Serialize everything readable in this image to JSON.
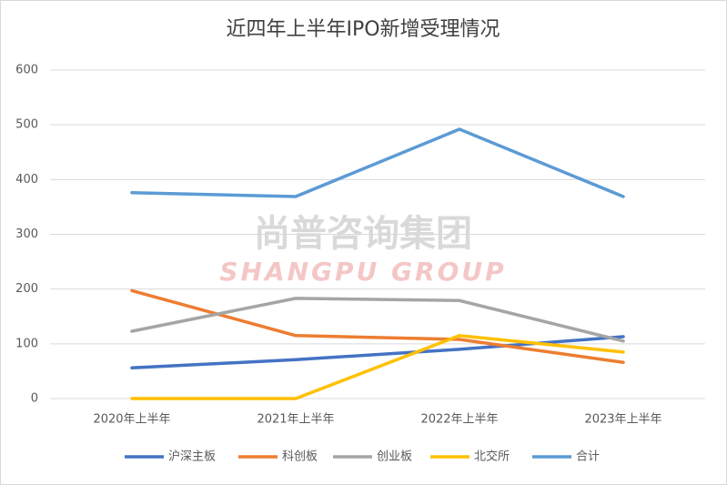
{
  "chart_data": {
    "type": "line",
    "title": "近四年上半年IPO新增受理情况",
    "watermark": [
      "尚普咨询集团",
      "SHANGPU GROUP"
    ],
    "categories": [
      "2020年上半年",
      "2021年上半年",
      "2022年上半年",
      "2023年上半年"
    ],
    "series": [
      {
        "name": "沪深主板",
        "color": "#4472c4",
        "values": [
          56,
          71,
          90,
          113
        ]
      },
      {
        "name": "科创板",
        "color": "#ed7d31",
        "values": [
          197,
          115,
          108,
          66
        ]
      },
      {
        "name": "创业板",
        "color": "#a5a5a5",
        "values": [
          123,
          183,
          179,
          105
        ]
      },
      {
        "name": "北交所",
        "color": "#ffc000",
        "values": [
          0,
          0,
          115,
          85
        ]
      },
      {
        "name": "合计",
        "color": "#5b9bd5",
        "values": [
          376,
          369,
          492,
          369
        ]
      }
    ],
    "ylim": [
      0,
      600
    ],
    "yticks": [
      0,
      100,
      200,
      300,
      400,
      500,
      600
    ],
    "grid": true
  }
}
